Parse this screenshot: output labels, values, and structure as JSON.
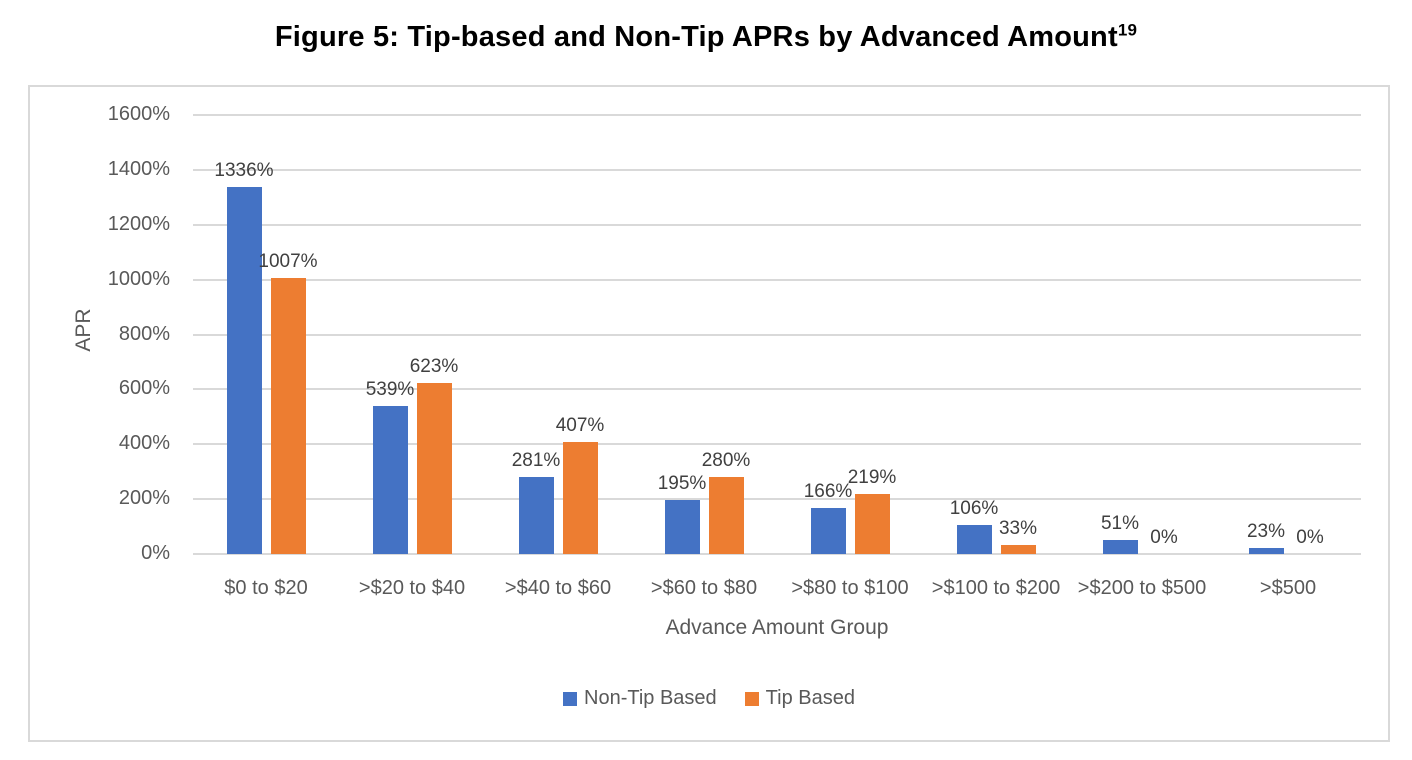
{
  "title": {
    "text": "Figure 5: Tip-based and Non-Tip APRs by Advanced Amount",
    "superscript": "19"
  },
  "chart_data": {
    "type": "bar",
    "categories": [
      "$0 to $20",
      ">$20 to $40",
      ">$40 to $60",
      ">$60 to $80",
      ">$80 to $100",
      ">$100 to $200",
      ">$200 to $500",
      ">$500"
    ],
    "series": [
      {
        "name": "Non-Tip Based",
        "color": "#4472C4",
        "values": [
          1336,
          539,
          281,
          195,
          166,
          106,
          51,
          23
        ]
      },
      {
        "name": "Tip Based",
        "color": "#ED7D31",
        "values": [
          1007,
          623,
          407,
          280,
          219,
          33,
          0,
          0
        ]
      }
    ],
    "data_label_suffix": "%",
    "xlabel": "Advance Amount Group",
    "ylabel": "APR",
    "ylim": [
      0,
      1600
    ],
    "y_tick_step": 200,
    "y_tick_labels": [
      "0%",
      "200%",
      "400%",
      "600%",
      "800%",
      "1000%",
      "1200%",
      "1400%",
      "1600%"
    ],
    "grid": true,
    "legend_position": "bottom"
  },
  "colors": {
    "axis_text": "#595959",
    "data_label_text": "#404040",
    "gridline": "#D9D9D9",
    "chart_border": "#D9D9D9",
    "title_text": "#000000"
  }
}
